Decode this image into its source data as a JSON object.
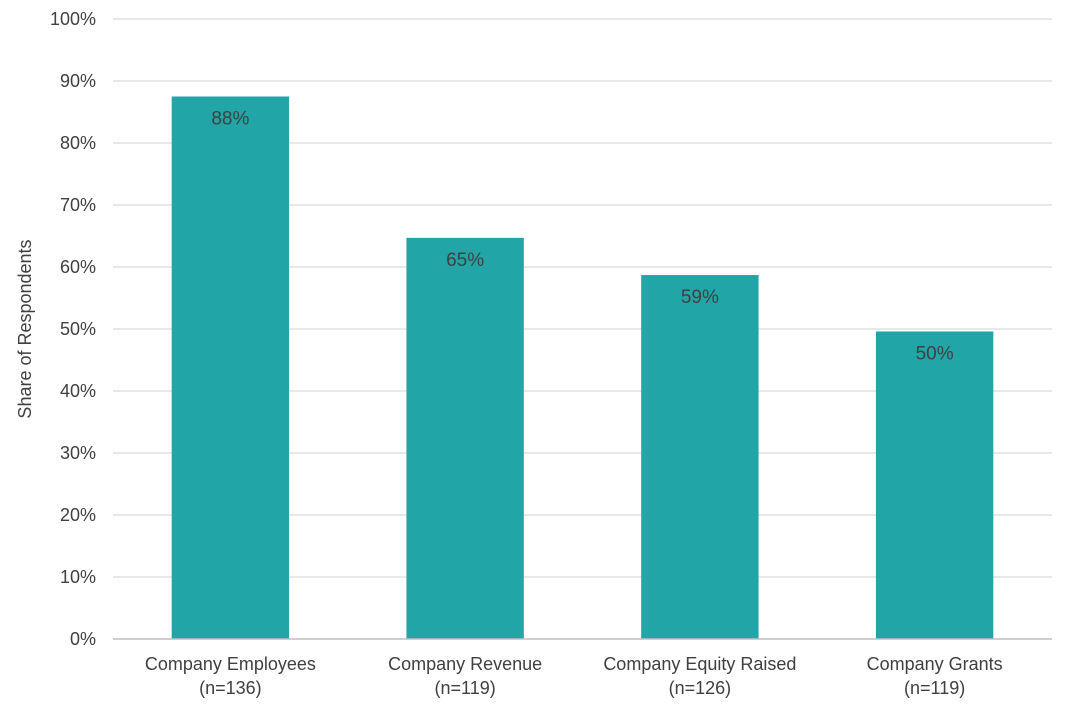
{
  "chart_data": {
    "type": "bar",
    "title": "",
    "xlabel": "",
    "ylabel": "Share of Respondents",
    "ylim": [
      0,
      100
    ],
    "yticks": [
      0,
      10,
      20,
      30,
      40,
      50,
      60,
      70,
      80,
      90,
      100
    ],
    "ytick_labels": [
      "0%",
      "10%",
      "20%",
      "30%",
      "40%",
      "50%",
      "60%",
      "70%",
      "80%",
      "90%",
      "100%"
    ],
    "grid": true,
    "legend": "none",
    "categories": [
      [
        "Company Employees",
        "(n=136)"
      ],
      [
        "Company Revenue",
        "(n=119)"
      ],
      [
        "Company Equity Raised",
        "(n=126)"
      ],
      [
        "Company Grants",
        "(n=119)"
      ]
    ],
    "values": [
      87.5,
      64.7,
      58.7,
      49.6
    ],
    "data_labels": [
      "88%",
      "65%",
      "59%",
      "50%"
    ],
    "colors": {
      "bar": "#22A5A7",
      "gridline": "#D9D9D9",
      "axis_line": "#BFBFBF",
      "text": "#404040"
    }
  }
}
